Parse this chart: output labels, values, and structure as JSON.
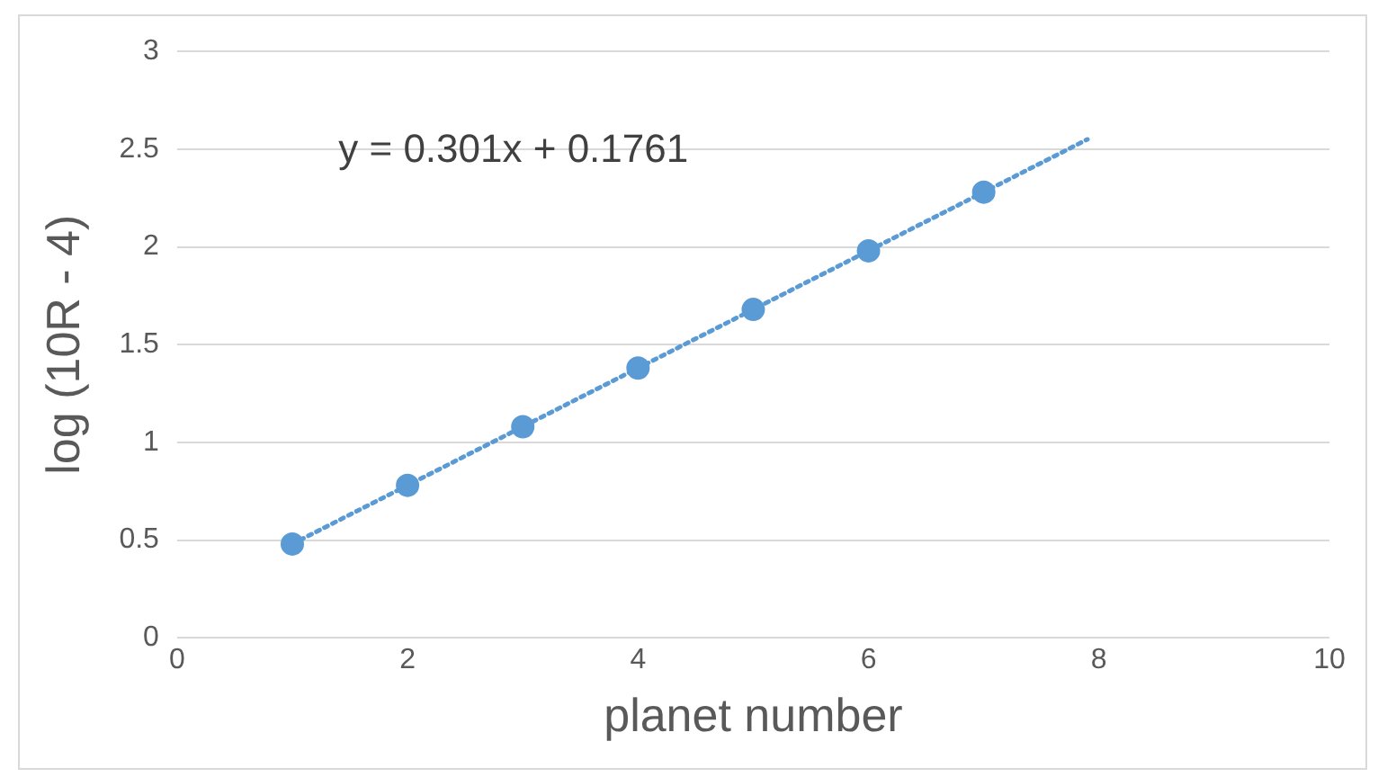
{
  "chart_data": {
    "type": "scatter",
    "xlabel": "planet number",
    "ylabel": "log (10R - 4)",
    "xlim": [
      0,
      10
    ],
    "xticks": [
      0,
      2,
      4,
      6,
      8,
      10
    ],
    "ylim": [
      0,
      3
    ],
    "yticks": [
      0,
      0.5,
      1,
      1.5,
      2,
      2.5,
      3
    ],
    "grid": "y",
    "legend": false,
    "annotations": [
      "y = 0.301x + 0.1761"
    ],
    "series": [
      {
        "type": "line",
        "x": [
          1,
          7.9
        ],
        "values": [
          0.48,
          2.55
        ],
        "color": "#5b9bd5",
        "line_style": "dotted",
        "marker": "none"
      },
      {
        "type": "scatter",
        "x": [
          1,
          2,
          3,
          4,
          5,
          6,
          7
        ],
        "values": [
          0.48,
          0.78,
          1.08,
          1.38,
          1.68,
          1.98,
          2.28
        ],
        "color": "#5b9bd5",
        "marker": "circle"
      }
    ]
  }
}
